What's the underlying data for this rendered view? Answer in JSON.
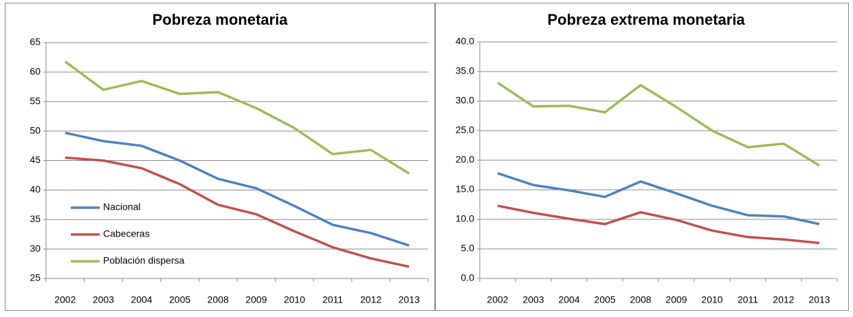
{
  "chart_data": [
    {
      "type": "line",
      "title": "Pobreza monetaria",
      "categories": [
        "2002",
        "2003",
        "2004",
        "2005",
        "2008",
        "2009",
        "2010",
        "2011",
        "2012",
        "2013"
      ],
      "ylim": [
        25,
        65
      ],
      "yticks": [
        25,
        30,
        35,
        40,
        45,
        50,
        55,
        60,
        65
      ],
      "grid": true,
      "legend": "lower-left",
      "series": [
        {
          "name": "Nacional",
          "color": "#4f81bd",
          "values": [
            49.7,
            48.3,
            47.5,
            45.0,
            41.9,
            40.3,
            37.3,
            34.1,
            32.7,
            30.6
          ]
        },
        {
          "name": "Cabeceras",
          "color": "#c0504d",
          "values": [
            45.5,
            45.0,
            43.7,
            41.0,
            37.5,
            35.9,
            33.0,
            30.3,
            28.4,
            27.0
          ]
        },
        {
          "name": "Población dispersa",
          "color": "#9bbb59",
          "values": [
            61.8,
            57.0,
            58.5,
            56.3,
            56.6,
            53.9,
            50.5,
            46.1,
            46.8,
            42.8
          ]
        }
      ]
    },
    {
      "type": "line",
      "title": "Pobreza extrema monetaria",
      "categories": [
        "2002",
        "2003",
        "2004",
        "2005",
        "2008",
        "2009",
        "2010",
        "2011",
        "2012",
        "2013"
      ],
      "ylim": [
        0,
        40
      ],
      "yticks": [
        {
          "value": 0,
          "label": "0.0"
        },
        {
          "value": 5,
          "label": "5.0"
        },
        {
          "value": 10,
          "label": "10.0"
        },
        {
          "value": 15,
          "label": "15.0"
        },
        {
          "value": 20,
          "label": "20.0"
        },
        {
          "value": 25,
          "label": "25.0"
        },
        {
          "value": 30,
          "label": "30.0"
        },
        {
          "value": 35,
          "label": "35.0"
        },
        {
          "value": 40,
          "label": "40.0"
        }
      ],
      "grid": true,
      "series": [
        {
          "color": "#4f81bd",
          "values": [
            17.8,
            15.8,
            14.9,
            13.8,
            16.4,
            14.4,
            12.3,
            10.7,
            10.5,
            9.2
          ]
        },
        {
          "color": "#c0504d",
          "values": [
            12.3,
            11.1,
            10.1,
            9.2,
            11.2,
            9.9,
            8.1,
            7.0,
            6.6,
            6.0
          ]
        },
        {
          "color": "#9bbb59",
          "values": [
            33.1,
            29.1,
            29.2,
            28.1,
            32.7,
            29.0,
            25.0,
            22.2,
            22.8,
            19.1
          ]
        }
      ]
    }
  ]
}
